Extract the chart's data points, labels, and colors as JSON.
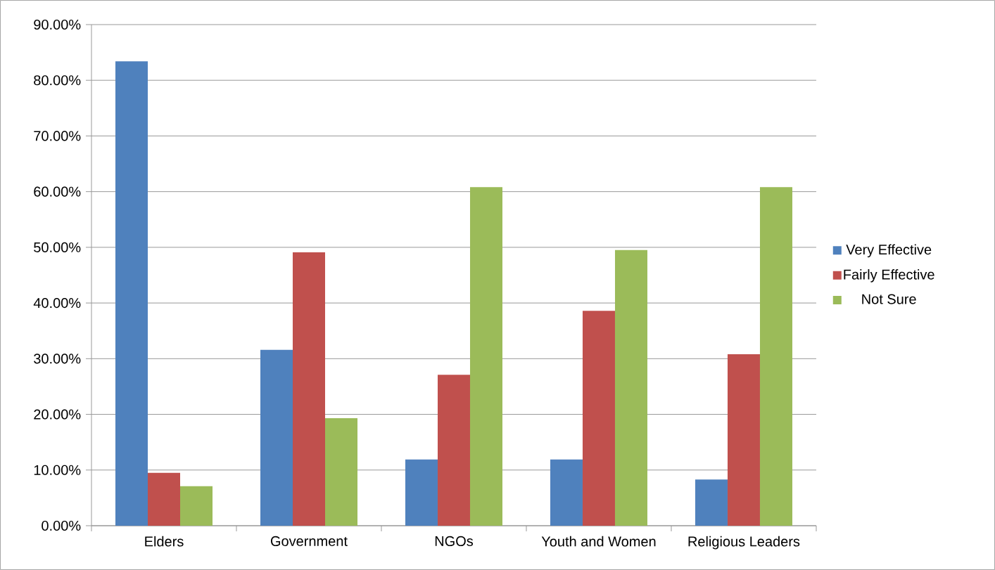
{
  "chart_data": {
    "type": "bar",
    "categories": [
      "Elders",
      "Government",
      "NGOs",
      "Youth and Women",
      "Religious Leaders"
    ],
    "series": [
      {
        "name": "Very Effective",
        "color": "#4f81bd",
        "values": [
          83.4,
          31.6,
          11.9,
          11.9,
          8.3
        ]
      },
      {
        "name": "Fairly Effective",
        "color": "#c0504d",
        "values": [
          9.5,
          49.1,
          27.1,
          38.6,
          30.8
        ]
      },
      {
        "name": "Not Sure",
        "color": "#9bbb59",
        "values": [
          7.1,
          19.3,
          60.8,
          49.5,
          60.8
        ]
      }
    ],
    "ylim": [
      0,
      90
    ],
    "yticks": [
      {
        "value": 0,
        "label": "0.00%"
      },
      {
        "value": 10,
        "label": "10.00%"
      },
      {
        "value": 20,
        "label": "20.00%"
      },
      {
        "value": 30,
        "label": "30.00%"
      },
      {
        "value": 40,
        "label": "40.00%"
      },
      {
        "value": 50,
        "label": "50.00%"
      },
      {
        "value": 60,
        "label": "60.00%"
      },
      {
        "value": 70,
        "label": "70.00%"
      },
      {
        "value": 80,
        "label": "80.00%"
      },
      {
        "value": 90,
        "label": "90.00%"
      }
    ],
    "grid": "y",
    "legend": "right"
  }
}
